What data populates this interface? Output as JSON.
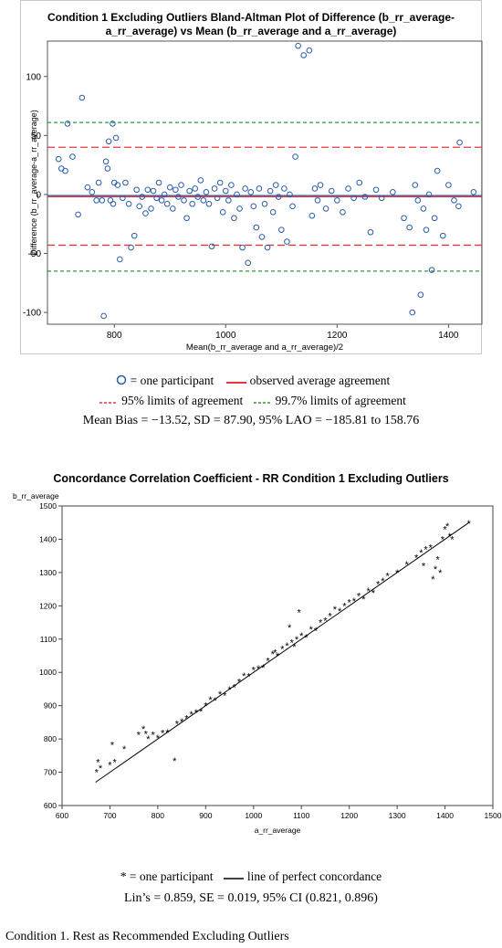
{
  "chart_data": [
    {
      "type": "scatter",
      "title": "Condition 1 Excluding Outliers Bland-Altman Plot of Difference (b_rr_average-a_rr_average) vs Mean (b_rr_average and a_rr_average)",
      "xlabel": "Mean(b_rr_average and a_rr_average)/2",
      "ylabel": "Difference (b_rr_average-a_rr_average)",
      "xlim": [
        680,
        1460
      ],
      "ylim": [
        -110,
        130
      ],
      "xticks": [
        800,
        1000,
        1200,
        1400
      ],
      "yticks": [
        -100,
        -50,
        0,
        50,
        100
      ],
      "reference_lines": {
        "mean_blue": -1,
        "red_solid": -2,
        "red_dashed": [
          40,
          -43
        ],
        "green_dashed": [
          61,
          -65
        ]
      },
      "points": [
        [
          700,
          30
        ],
        [
          705,
          22
        ],
        [
          712,
          20
        ],
        [
          716,
          60
        ],
        [
          725,
          32
        ],
        [
          735,
          -17
        ],
        [
          742,
          82
        ],
        [
          752,
          6
        ],
        [
          760,
          2
        ],
        [
          768,
          -5
        ],
        [
          772,
          10
        ],
        [
          778,
          -5
        ],
        [
          781,
          -103
        ],
        [
          785,
          28
        ],
        [
          788,
          22
        ],
        [
          790,
          45
        ],
        [
          793,
          -5
        ],
        [
          797,
          60
        ],
        [
          798,
          -8
        ],
        [
          800,
          10
        ],
        [
          803,
          48
        ],
        [
          806,
          8
        ],
        [
          810,
          -55
        ],
        [
          815,
          -3
        ],
        [
          820,
          10
        ],
        [
          826,
          -8
        ],
        [
          830,
          -45
        ],
        [
          836,
          -35
        ],
        [
          840,
          4
        ],
        [
          845,
          -10
        ],
        [
          850,
          -2
        ],
        [
          856,
          -16
        ],
        [
          860,
          4
        ],
        [
          866,
          -12
        ],
        [
          870,
          3
        ],
        [
          876,
          -3
        ],
        [
          880,
          10
        ],
        [
          885,
          -5
        ],
        [
          890,
          0
        ],
        [
          895,
          -8
        ],
        [
          900,
          6
        ],
        [
          905,
          -12
        ],
        [
          910,
          4
        ],
        [
          915,
          -2
        ],
        [
          920,
          8
        ],
        [
          925,
          -5
        ],
        [
          930,
          -20
        ],
        [
          935,
          3
        ],
        [
          940,
          -8
        ],
        [
          945,
          5
        ],
        [
          950,
          -2
        ],
        [
          955,
          12
        ],
        [
          960,
          -5
        ],
        [
          965,
          2
        ],
        [
          970,
          -8
        ],
        [
          975,
          -44
        ],
        [
          980,
          5
        ],
        [
          985,
          -3
        ],
        [
          990,
          10
        ],
        [
          995,
          -15
        ],
        [
          1000,
          3
        ],
        [
          1005,
          -5
        ],
        [
          1010,
          8
        ],
        [
          1015,
          -20
        ],
        [
          1020,
          0
        ],
        [
          1025,
          -12
        ],
        [
          1030,
          -45
        ],
        [
          1035,
          5
        ],
        [
          1040,
          -58
        ],
        [
          1045,
          2
        ],
        [
          1050,
          -10
        ],
        [
          1055,
          -28
        ],
        [
          1060,
          5
        ],
        [
          1065,
          -36
        ],
        [
          1070,
          -8
        ],
        [
          1075,
          -45
        ],
        [
          1080,
          3
        ],
        [
          1085,
          -15
        ],
        [
          1090,
          8
        ],
        [
          1095,
          -2
        ],
        [
          1100,
          -30
        ],
        [
          1105,
          5
        ],
        [
          1110,
          -40
        ],
        [
          1115,
          0
        ],
        [
          1120,
          -10
        ],
        [
          1125,
          32
        ],
        [
          1130,
          126
        ],
        [
          1140,
          118
        ],
        [
          1150,
          122
        ],
        [
          1155,
          -18
        ],
        [
          1160,
          5
        ],
        [
          1165,
          -5
        ],
        [
          1170,
          8
        ],
        [
          1180,
          -12
        ],
        [
          1190,
          3
        ],
        [
          1200,
          -5
        ],
        [
          1210,
          -15
        ],
        [
          1220,
          5
        ],
        [
          1230,
          -3
        ],
        [
          1240,
          10
        ],
        [
          1250,
          -2
        ],
        [
          1260,
          -32
        ],
        [
          1270,
          4
        ],
        [
          1280,
          -3
        ],
        [
          1300,
          2
        ],
        [
          1320,
          -20
        ],
        [
          1330,
          -28
        ],
        [
          1335,
          -100
        ],
        [
          1340,
          8
        ],
        [
          1345,
          -5
        ],
        [
          1350,
          -85
        ],
        [
          1355,
          -12
        ],
        [
          1360,
          -30
        ],
        [
          1365,
          0
        ],
        [
          1370,
          -64
        ],
        [
          1375,
          -20
        ],
        [
          1380,
          20
        ],
        [
          1390,
          -35
        ],
        [
          1400,
          8
        ],
        [
          1410,
          -5
        ],
        [
          1418,
          -10
        ],
        [
          1420,
          44
        ],
        [
          1445,
          2
        ]
      ]
    },
    {
      "type": "scatter",
      "title": "Concordance Correlation Coefficient - RR Condition 1 Excluding Outliers",
      "xlabel": "a_rr_average",
      "ylabel": "b_rr_average",
      "xlim": [
        600,
        1500
      ],
      "ylim": [
        600,
        1500
      ],
      "xticks": [
        600,
        700,
        800,
        900,
        1000,
        1100,
        1200,
        1300,
        1400,
        1500
      ],
      "yticks": [
        600,
        700,
        800,
        900,
        1000,
        1100,
        1200,
        1300,
        1400,
        1500
      ],
      "identity_line": [
        [
          670,
          670
        ],
        [
          1450,
          1450
        ]
      ],
      "points": [
        [
          672,
          700
        ],
        [
          675,
          730
        ],
        [
          680,
          712
        ],
        [
          700,
          722
        ],
        [
          705,
          782
        ],
        [
          710,
          730
        ],
        [
          730,
          770
        ],
        [
          760,
          812
        ],
        [
          770,
          830
        ],
        [
          775,
          815
        ],
        [
          780,
          800
        ],
        [
          790,
          812
        ],
        [
          800,
          803
        ],
        [
          810,
          818
        ],
        [
          820,
          820
        ],
        [
          835,
          735
        ],
        [
          840,
          845
        ],
        [
          850,
          852
        ],
        [
          860,
          862
        ],
        [
          870,
          875
        ],
        [
          880,
          880
        ],
        [
          890,
          883
        ],
        [
          900,
          900
        ],
        [
          910,
          918
        ],
        [
          920,
          915
        ],
        [
          930,
          935
        ],
        [
          940,
          930
        ],
        [
          950,
          948
        ],
        [
          960,
          955
        ],
        [
          970,
          972
        ],
        [
          980,
          990
        ],
        [
          990,
          988
        ],
        [
          1000,
          1008
        ],
        [
          1010,
          1012
        ],
        [
          1020,
          1015
        ],
        [
          1030,
          1035
        ],
        [
          1040,
          1055
        ],
        [
          1045,
          1060
        ],
        [
          1050,
          1050
        ],
        [
          1060,
          1070
        ],
        [
          1070,
          1080
        ],
        [
          1075,
          1135
        ],
        [
          1080,
          1090
        ],
        [
          1085,
          1078
        ],
        [
          1090,
          1100
        ],
        [
          1095,
          1180
        ],
        [
          1100,
          1110
        ],
        [
          1110,
          1105
        ],
        [
          1120,
          1130
        ],
        [
          1130,
          1125
        ],
        [
          1140,
          1150
        ],
        [
          1150,
          1155
        ],
        [
          1160,
          1170
        ],
        [
          1170,
          1190
        ],
        [
          1180,
          1185
        ],
        [
          1190,
          1200
        ],
        [
          1200,
          1210
        ],
        [
          1210,
          1215
        ],
        [
          1220,
          1230
        ],
        [
          1230,
          1220
        ],
        [
          1240,
          1245
        ],
        [
          1250,
          1240
        ],
        [
          1260,
          1265
        ],
        [
          1270,
          1275
        ],
        [
          1280,
          1290
        ],
        [
          1300,
          1300
        ],
        [
          1320,
          1325
        ],
        [
          1340,
          1345
        ],
        [
          1350,
          1360
        ],
        [
          1355,
          1320
        ],
        [
          1360,
          1370
        ],
        [
          1370,
          1375
        ],
        [
          1375,
          1280
        ],
        [
          1380,
          1310
        ],
        [
          1385,
          1340
        ],
        [
          1390,
          1300
        ],
        [
          1395,
          1400
        ],
        [
          1400,
          1430
        ],
        [
          1405,
          1440
        ],
        [
          1410,
          1410
        ],
        [
          1415,
          1400
        ],
        [
          1450,
          1448
        ]
      ]
    }
  ],
  "legend_top": {
    "participant": "= one participant",
    "observed": "observed average agreement",
    "limits95": "95% limits of agreement",
    "limits997": "99.7% limits of agreement"
  },
  "stats_top": "Mean Bias = −13.52, SD = 87.90, 95% LAO = −185.81 to 158.76",
  "legend_bottom": {
    "participant": "* = one participant",
    "concordance": "line of perfect concordance"
  },
  "stats_bottom": "Lin’s = 0.859, SE = 0.019, 95% CI (0.821, 0.896)",
  "caption": "Condition 1. Rest as Recommended Excluding Outliers",
  "colors": {
    "points_top": "#2a5caa",
    "red": "#e23a3a",
    "green": "#2e9a3a",
    "blue": "#2a5caa"
  }
}
